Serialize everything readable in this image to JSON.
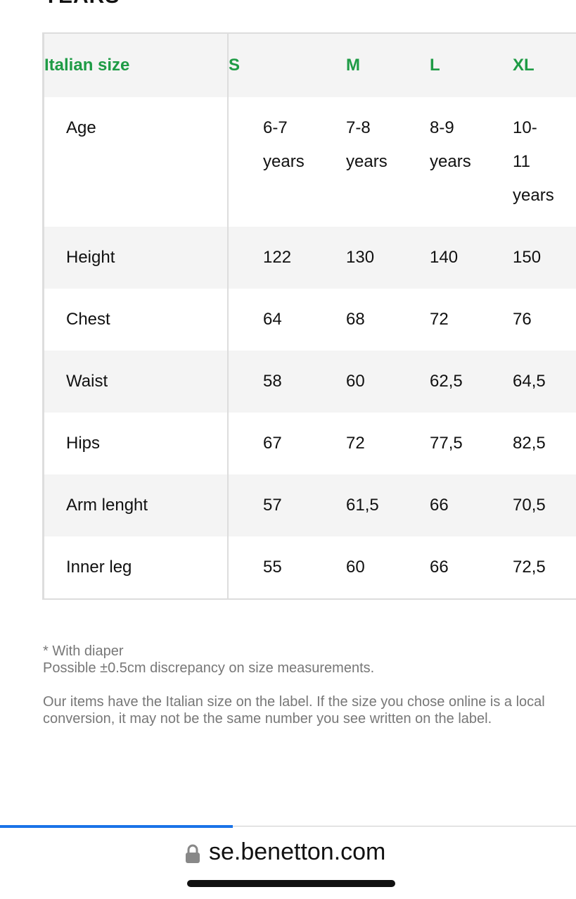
{
  "heading": "YEARS",
  "table": {
    "header": [
      "Italian size",
      "S",
      "M",
      "L",
      "XL"
    ],
    "rows": [
      [
        "Age",
        "6-7 years",
        "7-8 years",
        "8-9 years",
        "10-11 years"
      ],
      [
        "Height",
        "122",
        "130",
        "140",
        "150"
      ],
      [
        "Chest",
        "64",
        "68",
        "72",
        "76"
      ],
      [
        "Waist",
        "58",
        "60",
        "62,5",
        "64,5"
      ],
      [
        "Hips",
        "67",
        "72",
        "77,5",
        "82,5"
      ],
      [
        "Arm lenght",
        "57",
        "61,5",
        "66",
        "70,5"
      ],
      [
        "Inner leg",
        "55",
        "60",
        "66",
        "72,5"
      ]
    ]
  },
  "notes": [
    "* With diaper",
    "Possible ±0.5cm discrepancy on size measurements.",
    "Our items have the Italian size on the label. If the size you chose online is a local conversion, it may not be the same number you see written on the label."
  ],
  "url": "se.benetton.com"
}
